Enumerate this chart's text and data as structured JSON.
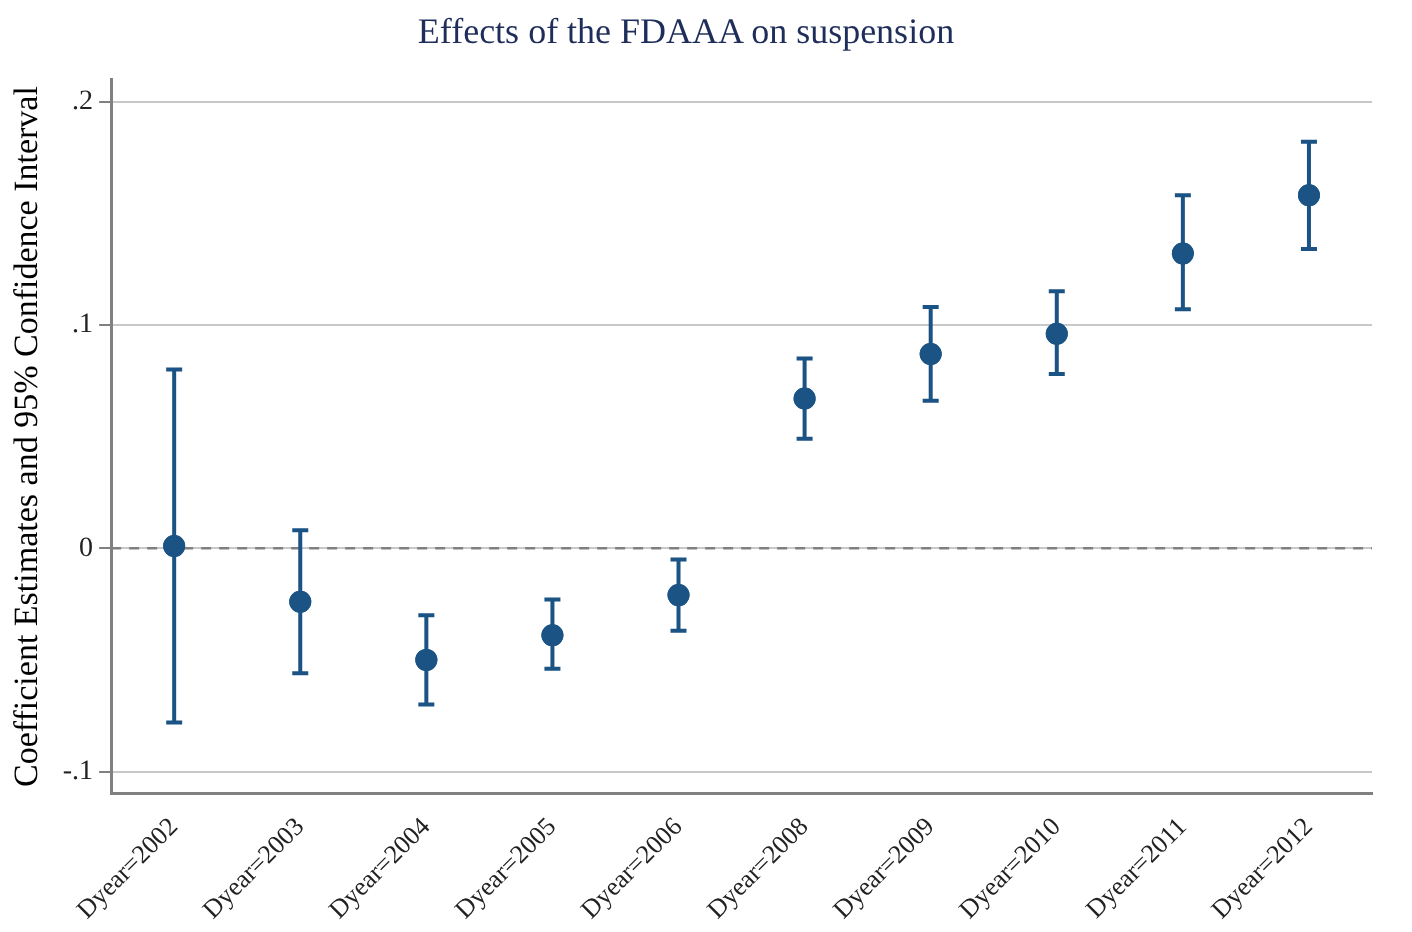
{
  "chart_data": {
    "type": "scatter",
    "title": "Effects of the FDAAA on suspension",
    "ylabel": "Coefficient Estimates and 95% Confidence Interval",
    "categories": [
      "Dyear=2002",
      "Dyear=2003",
      "Dyear=2004",
      "Dyear=2005",
      "Dyear=2006",
      "Dyear=2008",
      "Dyear=2009",
      "Dyear=2010",
      "Dyear=2011",
      "Dyear=2012"
    ],
    "values": [
      0.001,
      -0.024,
      -0.05,
      -0.039,
      -0.021,
      0.067,
      0.087,
      0.096,
      0.132,
      0.158
    ],
    "errors": [
      [
        -0.078,
        0.08
      ],
      [
        -0.056,
        0.008
      ],
      [
        -0.07,
        -0.03
      ],
      [
        -0.054,
        -0.023
      ],
      [
        -0.037,
        -0.005
      ],
      [
        0.049,
        0.085
      ],
      [
        0.066,
        0.108
      ],
      [
        0.078,
        0.115
      ],
      [
        0.107,
        0.158
      ],
      [
        0.134,
        0.182
      ]
    ],
    "color": "#1b5384",
    "marker": "circle",
    "ylim": [
      -0.11,
      0.21
    ],
    "yticks": [
      {
        "value": -0.1,
        "label": "-.1"
      },
      {
        "value": 0,
        "label": "0"
      },
      {
        "value": 0.1,
        "label": ".1"
      },
      {
        "value": 0.2,
        "label": ".2"
      }
    ],
    "grid": "y",
    "legend": false,
    "ref_lines": [
      {
        "axis": "y",
        "value": 0,
        "color": "#808080",
        "line_style": "dashed"
      }
    ]
  }
}
